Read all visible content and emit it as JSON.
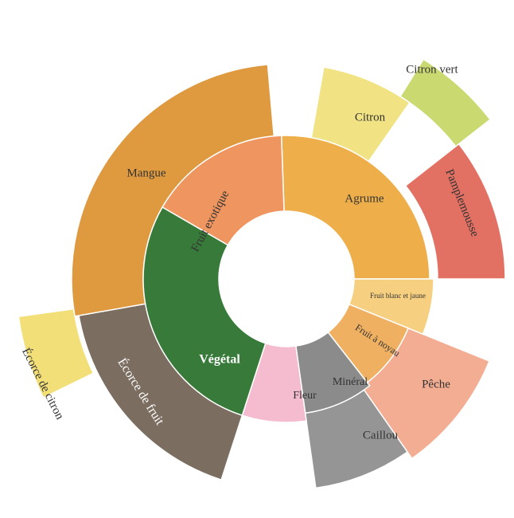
{
  "chart_data": {
    "type": "sunburst",
    "title": "",
    "rings": {
      "inner": [
        {
          "label": "Agrume",
          "color": "#eeaf4b",
          "label_color": "#333333",
          "label_size": 15,
          "label_weight": "normal",
          "rotate": 0
        },
        {
          "label": "Fruit blanc et jaune",
          "color": "#f6d080",
          "label_color": "#333333",
          "label_size": 9,
          "label_weight": "normal",
          "rotate": 0
        },
        {
          "label": "Fruit à noyau",
          "color": "#f0b062",
          "label_color": "#333333",
          "label_size": 12,
          "label_weight": "normal",
          "rotate": 33
        },
        {
          "label": "Minéral",
          "color": "#8b8b8b",
          "label_color": "#333333",
          "label_size": 14,
          "label_weight": "normal",
          "rotate": 0
        },
        {
          "label": "Fleur",
          "color": "#f5bccf",
          "label_color": "#333333",
          "label_size": 14,
          "label_weight": "normal",
          "rotate": 0
        },
        {
          "label": "Végétal",
          "color": "#377a3a",
          "label_color": "#ffffff",
          "label_size": 16,
          "label_weight": "bold",
          "rotate": 0
        },
        {
          "label": "Fruit exotique",
          "color": "#ef955f",
          "label_color": "#333333",
          "label_size": 15,
          "label_weight": "normal",
          "rotate": -62
        }
      ],
      "outer": [
        {
          "label": "Citron vert",
          "color": "#cad970",
          "label_color": "#333333",
          "label_size": 15,
          "label_weight": "normal",
          "rotate": 0
        },
        {
          "label": "Pamplemousse",
          "color": "#e27063",
          "label_color": "#333333",
          "label_size": 15,
          "label_weight": "normal",
          "rotate": 68
        },
        {
          "label": "Pêche",
          "color": "#f3ad92",
          "label_color": "#333333",
          "label_size": 15,
          "label_weight": "normal",
          "rotate": 0
        },
        {
          "label": "Caillou",
          "color": "#959595",
          "label_color": "#333333",
          "label_size": 15,
          "label_weight": "normal",
          "rotate": 0
        },
        {
          "label": "Écorce de fruit",
          "color": "#7b6d60",
          "label_color": "#ffffff",
          "label_size": 16,
          "label_weight": "normal",
          "rotate": 58
        },
        {
          "label": "Écorce de citron",
          "color": "#f2df78",
          "label_color": "#333333",
          "label_size": 15,
          "label_weight": "normal",
          "rotate": 63
        },
        {
          "label": "Mangue",
          "color": "#df9a40",
          "label_color": "#333333",
          "label_size": 15,
          "label_weight": "normal",
          "rotate": 0
        },
        {
          "label": "Citron",
          "color": "#f1e384",
          "label_color": "#333333",
          "label_size": 15,
          "label_weight": "normal",
          "rotate": 0
        }
      ]
    }
  }
}
